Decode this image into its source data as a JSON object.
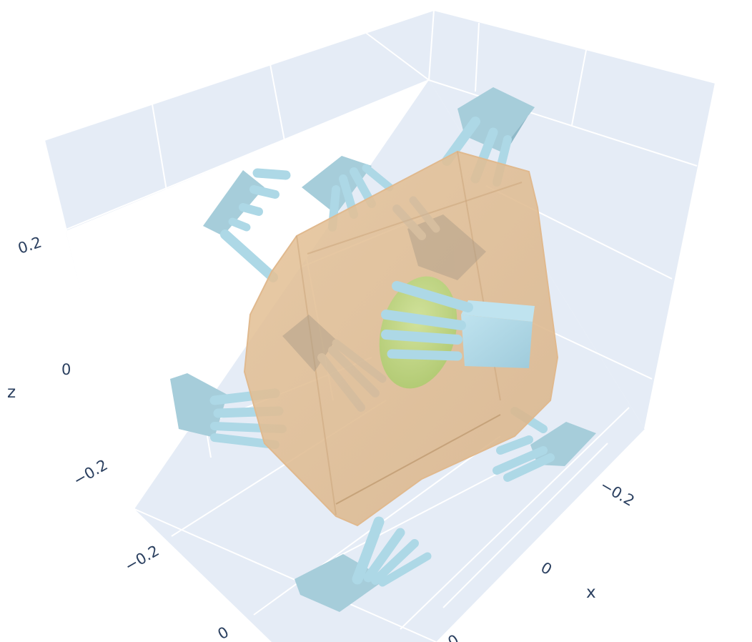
{
  "chart_data": {
    "type": "scatter3d",
    "title": "",
    "axes": {
      "x": {
        "label": "x",
        "ticks": [
          "−0.2",
          "0"
        ]
      },
      "y": {
        "label": "",
        "ticks": [
          "−0.2",
          "0",
          "0"
        ]
      },
      "z": {
        "label": "z",
        "ticks": [
          "0.2",
          "0",
          "−0.2"
        ]
      }
    },
    "grid": true,
    "legend": "none",
    "objects": [
      {
        "name": "object-hull",
        "kind": "transparent convex mesh",
        "color": "#deb887"
      },
      {
        "name": "inner-object",
        "kind": "ellipsoid mesh",
        "color": "#b7d67a"
      },
      {
        "name": "hand-grasps",
        "kind": "hand meshes",
        "count": 8,
        "color": "#add8e6"
      }
    ],
    "colors": {
      "plane": "#e5ecf6",
      "grid": "#ffffff",
      "text": "#2a3f5f"
    }
  }
}
